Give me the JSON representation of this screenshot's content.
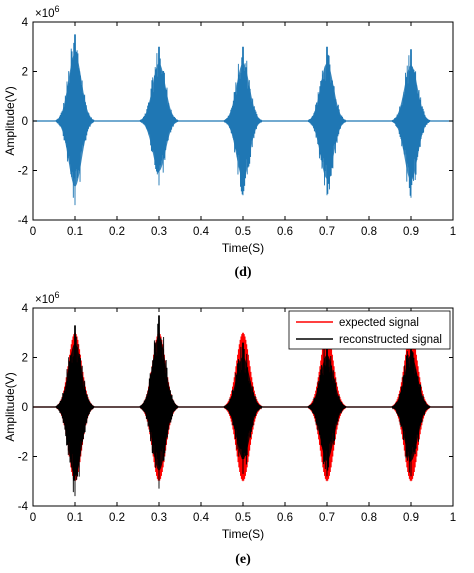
{
  "chart_data": [
    {
      "type": "line",
      "panel_label": "(d)",
      "xlabel": "Time(S)",
      "ylabel": "Amplitude(V)",
      "y_multiplier": "×10",
      "y_multiplier_exp": "6",
      "xlim": [
        0,
        1
      ],
      "ylim": [
        -4,
        4
      ],
      "xticks": [
        "0",
        "0.1",
        "0.2",
        "0.3",
        "0.4",
        "0.5",
        "0.6",
        "0.7",
        "0.8",
        "0.9",
        "1"
      ],
      "yticks": [
        "-4",
        "-2",
        "0",
        "2",
        "4"
      ],
      "grid": false,
      "legend": null,
      "series": [
        {
          "color": "#1f77b4",
          "bursts": [
            {
              "center": 0.1,
              "peak_max": 3.5,
              "peak_min": -3.4
            },
            {
              "center": 0.3,
              "peak_max": 3.0,
              "peak_min": -2.6
            },
            {
              "center": 0.5,
              "peak_max": 3.0,
              "peak_min": -3.0
            },
            {
              "center": 0.7,
              "peak_max": 3.0,
              "peak_min": -3.0
            },
            {
              "center": 0.9,
              "peak_max": 2.9,
              "peak_min": -3.1
            }
          ]
        }
      ]
    },
    {
      "type": "line",
      "panel_label": "(e)",
      "xlabel": "Time(S)",
      "ylabel": "Amplitude(V)",
      "y_multiplier": "×10",
      "y_multiplier_exp": "6",
      "xlim": [
        0,
        1
      ],
      "ylim": [
        -4,
        4
      ],
      "xticks": [
        "0",
        "0.1",
        "0.2",
        "0.3",
        "0.4",
        "0.5",
        "0.6",
        "0.7",
        "0.8",
        "0.9",
        "1"
      ],
      "yticks": [
        "-4",
        "-2",
        "0",
        "2",
        "4"
      ],
      "grid": false,
      "legend": "top-right",
      "series": [
        {
          "name": "expected signal",
          "color": "#ff0000",
          "bursts": [
            {
              "center": 0.1,
              "peak_max": 3.0,
              "peak_min": -3.0
            },
            {
              "center": 0.3,
              "peak_max": 3.0,
              "peak_min": -3.0
            },
            {
              "center": 0.5,
              "peak_max": 3.0,
              "peak_min": -3.0
            },
            {
              "center": 0.7,
              "peak_max": 3.0,
              "peak_min": -3.0
            },
            {
              "center": 0.9,
              "peak_max": 3.0,
              "peak_min": -3.0
            }
          ]
        },
        {
          "name": "reconstructed signal",
          "color": "#000000",
          "bursts": [
            {
              "center": 0.1,
              "peak_max": 3.3,
              "peak_min": -3.6
            },
            {
              "center": 0.3,
              "peak_max": 3.7,
              "peak_min": -3.3
            },
            {
              "center": 0.5,
              "peak_max": 2.6,
              "peak_min": -2.7
            },
            {
              "center": 0.7,
              "peak_max": 2.7,
              "peak_min": -2.8
            },
            {
              "center": 0.9,
              "peak_max": 2.7,
              "peak_min": -2.8
            }
          ]
        }
      ]
    }
  ]
}
